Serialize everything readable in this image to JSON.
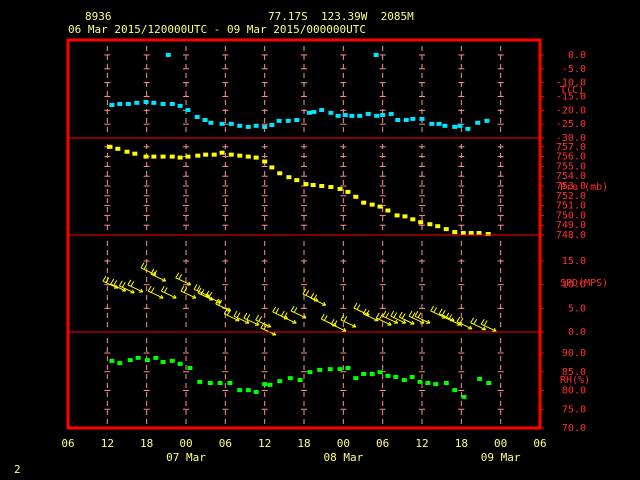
{
  "header": {
    "station": "8936",
    "location": "77.17S  123.39W  2085M",
    "period": "06 Mar 2015/120000UTC - 09 Mar 2015/000000UTC",
    "page": "2"
  },
  "x_axis": {
    "xlim": [
      6,
      78
    ],
    "ticks": [
      {
        "value": 6,
        "label": "06"
      },
      {
        "value": 12,
        "label": "12"
      },
      {
        "value": 18,
        "label": "18"
      },
      {
        "value": 24,
        "label": "00"
      },
      {
        "value": 30,
        "label": "06"
      },
      {
        "value": 36,
        "label": "12"
      },
      {
        "value": 42,
        "label": "18"
      },
      {
        "value": 48,
        "label": "00"
      },
      {
        "value": 54,
        "label": "06"
      },
      {
        "value": 60,
        "label": "12"
      },
      {
        "value": 66,
        "label": "18"
      },
      {
        "value": 72,
        "label": "00"
      },
      {
        "value": 78,
        "label": "06"
      }
    ],
    "date_labels": [
      {
        "value": 24,
        "label": "07 Mar"
      },
      {
        "value": 48,
        "label": "08 Mar"
      },
      {
        "value": 72,
        "label": "09 Mar"
      }
    ]
  },
  "chart_data": [
    {
      "type": "scatter",
      "ylabel": "T(C)",
      "color": "#00e5ff",
      "ylim": [
        -30,
        5.4
      ],
      "yticks": [
        {
          "value": 0,
          "label": "0.0"
        },
        {
          "value": -5,
          "label": "-5.0"
        },
        {
          "value": -10,
          "label": "-10.0"
        },
        {
          "value": -15,
          "label": "-15.0"
        },
        {
          "value": -20,
          "label": "-20.0"
        },
        {
          "value": -25,
          "label": "-25.0"
        },
        {
          "value": -30,
          "label": "-30.0"
        }
      ],
      "x": [
        12.7,
        13.9,
        15.2,
        16.5,
        17.9,
        19.1,
        20.5,
        21.3,
        21.9,
        23.1,
        24.3,
        25.7,
        26.9,
        27.8,
        29.5,
        30.9,
        32.2,
        33.5,
        34.7,
        36.0,
        37.1,
        38.2,
        39.6,
        40.9,
        42.8,
        43.5,
        44.7,
        46.1,
        47.2,
        48.3,
        49.3,
        50.5,
        51.8,
        53.0,
        53.1,
        54.0,
        55.3,
        56.3,
        57.6,
        58.6,
        60.0,
        61.5,
        62.6,
        63.5,
        65.0,
        65.8,
        67.0,
        68.5,
        69.9
      ],
      "values": [
        -18.1,
        -17.7,
        -17.7,
        -17.3,
        -17.0,
        -17.3,
        -17.7,
        0.0,
        -17.7,
        -18.4,
        -19.9,
        -22.4,
        -23.5,
        -24.5,
        -24.9,
        -24.9,
        -25.6,
        -26.0,
        -25.6,
        -26.0,
        -25.3,
        -23.8,
        -23.8,
        -23.5,
        -20.9,
        -20.6,
        -19.9,
        -20.9,
        -22.0,
        -21.7,
        -22.0,
        -22.0,
        -21.3,
        0.0,
        -22.0,
        -21.7,
        -21.3,
        -23.5,
        -23.5,
        -23.1,
        -23.1,
        -24.9,
        -24.9,
        -25.6,
        -26.0,
        -25.6,
        -26.7,
        -24.5,
        -23.8
      ]
    },
    {
      "type": "scatter",
      "ylabel": "Pre (mb)",
      "color": "#ffff00",
      "ylim": [
        748,
        757.9
      ],
      "yticks": [
        {
          "value": 757,
          "label": "757.0"
        },
        {
          "value": 756,
          "label": "756.0"
        },
        {
          "value": 755,
          "label": "755.0"
        },
        {
          "value": 754,
          "label": "754.0"
        },
        {
          "value": 753,
          "label": "753.0"
        },
        {
          "value": 752,
          "label": "752.0"
        },
        {
          "value": 751,
          "label": "751.0"
        },
        {
          "value": 750,
          "label": "750.0"
        },
        {
          "value": 749,
          "label": "749.0"
        },
        {
          "value": 748,
          "label": "748.0"
        }
      ],
      "x": [
        12.4,
        13.6,
        15.0,
        16.2,
        17.9,
        19.1,
        20.5,
        21.9,
        23.1,
        24.3,
        25.8,
        27.0,
        28.3,
        29.5,
        30.9,
        32.2,
        33.5,
        34.7,
        36.0,
        37.1,
        38.3,
        39.7,
        40.9,
        42.3,
        43.4,
        44.7,
        46.1,
        47.5,
        48.7,
        49.9,
        51.1,
        52.4,
        53.6,
        54.8,
        56.2,
        57.4,
        58.6,
        59.8,
        61.2,
        62.4,
        63.7,
        65.0,
        66.3,
        67.5,
        68.7,
        70.1
      ],
      "values": [
        757.0,
        756.8,
        756.5,
        756.3,
        756.0,
        756.0,
        756.0,
        756.0,
        755.9,
        756.0,
        756.1,
        756.2,
        756.2,
        756.4,
        756.2,
        756.1,
        756.0,
        755.9,
        755.5,
        754.9,
        754.3,
        753.9,
        753.6,
        753.2,
        753.1,
        753.0,
        752.9,
        752.7,
        752.4,
        751.9,
        751.3,
        751.1,
        750.9,
        750.5,
        750.0,
        749.9,
        749.6,
        749.3,
        749.1,
        748.9,
        748.6,
        748.3,
        748.2,
        748.2,
        748.2,
        748.1
      ]
    },
    {
      "type": "barb",
      "ylabel": "SPD(MPS)",
      "color": "#ffff00",
      "ylim": [
        0,
        20.5
      ],
      "yticks": [
        {
          "value": 15,
          "label": "15.0"
        },
        {
          "value": 10,
          "label": "10.0"
        },
        {
          "value": 5,
          "label": "5.0"
        },
        {
          "value": 0,
          "label": "0.0"
        }
      ],
      "x": [
        12.7,
        13.9,
        15.2,
        16.5,
        18.5,
        19.6,
        20.0,
        21.6,
        23.8,
        24.6,
        26.6,
        27.2,
        28.4,
        29.9,
        31.2,
        32.7,
        34.2,
        36.0,
        36.8,
        38.6,
        39.9,
        41.4,
        43.2,
        44.4,
        46.0,
        47.5,
        49.0,
        51.0,
        52.4,
        54.4,
        55.4,
        56.6,
        57.9,
        59.4,
        60.3,
        62.7,
        64.0,
        65.0,
        66.7,
        68.8,
        70.4
      ],
      "values": [
        9.9,
        9.3,
        8.9,
        9.1,
        12.7,
        7.8,
        11.4,
        7.8,
        10.6,
        7.8,
        8.2,
        7.4,
        6.8,
        5.1,
        3.0,
        2.5,
        2.1,
        1.7,
        0.0,
        3.4,
        2.5,
        3.6,
        7.2,
        6.3,
        1.9,
        0.8,
        1.7,
        4.2,
        3.0,
        2.1,
        2.5,
        2.5,
        2.3,
        2.5,
        2.5,
        3.6,
        3.0,
        2.1,
        1.3,
        1.1,
        0.8
      ]
    },
    {
      "type": "scatter",
      "ylabel": "RH(%)",
      "color": "#00ff00",
      "ylim": [
        70,
        95.6
      ],
      "yticks": [
        {
          "value": 90,
          "label": "90.0"
        },
        {
          "value": 85,
          "label": "85.0"
        },
        {
          "value": 80,
          "label": "80.0"
        },
        {
          "value": 75,
          "label": "75.0"
        },
        {
          "value": 70,
          "label": "70.0"
        }
      ],
      "x": [
        12.7,
        13.9,
        15.5,
        16.7,
        18.1,
        19.4,
        20.5,
        21.9,
        23.1,
        24.6,
        26.1,
        27.7,
        29.2,
        30.7,
        32.2,
        33.5,
        34.7,
        36.0,
        36.8,
        38.3,
        39.9,
        41.4,
        42.9,
        44.4,
        46.0,
        47.5,
        48.7,
        49.9,
        51.1,
        52.4,
        53.6,
        54.8,
        56.0,
        57.3,
        58.5,
        59.7,
        60.9,
        62.1,
        63.7,
        65.0,
        66.4,
        68.8,
        70.2
      ],
      "values": [
        87.9,
        87.3,
        88.1,
        88.7,
        88.1,
        88.7,
        87.6,
        87.9,
        87.1,
        86.0,
        82.3,
        82.0,
        82.0,
        82.0,
        80.1,
        80.1,
        79.6,
        81.7,
        81.5,
        82.5,
        83.3,
        82.8,
        84.9,
        85.5,
        85.7,
        85.7,
        86.0,
        83.3,
        84.4,
        84.4,
        84.9,
        83.9,
        83.6,
        82.8,
        83.6,
        82.3,
        82.0,
        81.7,
        82.0,
        80.1,
        78.3,
        83.1,
        82.0
      ]
    }
  ]
}
